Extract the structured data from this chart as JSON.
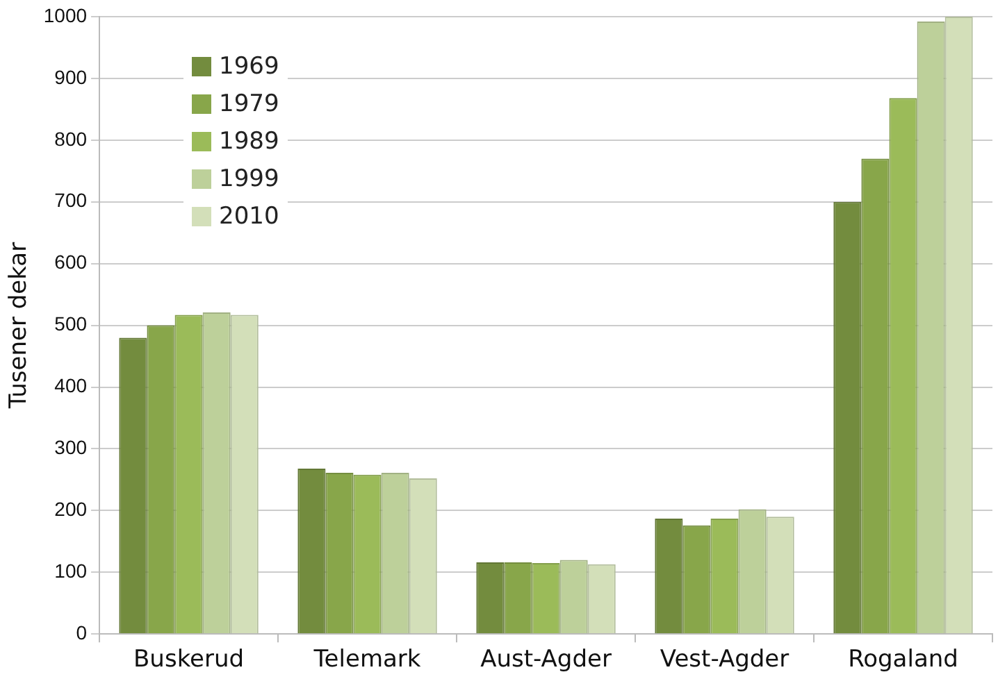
{
  "chart_data": {
    "type": "bar",
    "ylabel": "Tusener dekar",
    "categories": [
      "Buskerud",
      "Telemark",
      "Aust-Agder",
      "Vest-Agder",
      "Rogaland"
    ],
    "series": [
      {
        "name": "1969",
        "color": "#738c3e",
        "values": [
          480,
          268,
          116,
          187,
          700
        ]
      },
      {
        "name": "1979",
        "color": "#88a64a",
        "values": [
          500,
          261,
          116,
          176,
          770
        ]
      },
      {
        "name": "1989",
        "color": "#9bbb59",
        "values": [
          517,
          258,
          115,
          187,
          868
        ]
      },
      {
        "name": "1999",
        "color": "#bdd09a",
        "values": [
          521,
          261,
          120,
          202,
          992
        ]
      },
      {
        "name": "2010",
        "color": "#d3dfb9",
        "values": [
          517,
          252,
          113,
          190,
          1000
        ]
      }
    ],
    "ylim": [
      0,
      1000
    ],
    "yticks": [
      0,
      100,
      200,
      300,
      400,
      500,
      600,
      700,
      800,
      900,
      1000
    ],
    "grid": "y",
    "legend": "top left"
  }
}
